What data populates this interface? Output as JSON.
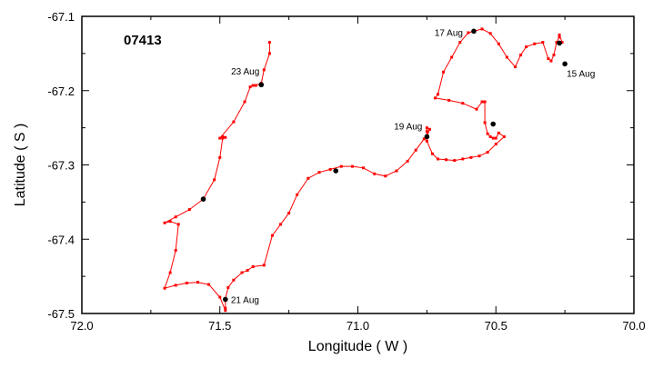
{
  "chart_data": {
    "type": "line",
    "title": "",
    "float_id": "07413",
    "xlabel": "Longitude ( W )",
    "ylabel": "Latitude ( S )",
    "xlim": [
      72.0,
      70.0
    ],
    "ylim": [
      -67.5,
      -67.1
    ],
    "x_ticks": [
      72.0,
      71.5,
      71.0,
      70.5,
      70.0
    ],
    "x_tick_labels": [
      "72.0",
      "71.5",
      "71.0",
      "70.5",
      "70.0"
    ],
    "y_ticks": [
      -67.1,
      -67.2,
      -67.3,
      -67.4,
      -67.5
    ],
    "y_tick_labels": [
      "-67.1",
      "-67.2",
      "-67.3",
      "-67.4",
      "-67.5"
    ],
    "grid": false,
    "legend": "none",
    "colors": {
      "track": "#ff0000",
      "marker": "#000000",
      "frame": "#000000"
    },
    "series": [
      {
        "x": [
          70.26,
          70.27,
          70.27,
          70.28,
          70.29,
          70.3,
          70.31,
          70.33,
          70.36,
          70.39,
          70.41,
          70.43,
          70.46,
          70.49,
          70.52,
          70.55,
          70.58,
          70.6,
          70.63,
          70.66,
          70.69,
          70.71,
          70.72,
          70.67,
          70.62,
          70.57,
          70.55,
          70.54,
          70.54,
          70.53,
          70.52,
          70.51,
          70.5,
          70.49,
          70.47,
          70.5,
          70.53,
          70.56,
          70.59,
          70.62,
          70.65,
          70.68,
          70.71,
          70.73,
          70.75,
          70.75,
          70.75,
          70.74,
          70.75,
          70.76,
          70.79,
          70.82,
          70.86,
          70.9,
          70.94,
          70.98,
          71.02,
          71.06,
          71.1,
          71.14,
          71.18,
          71.22,
          71.25,
          71.28,
          71.31,
          71.34,
          71.38,
          71.4,
          71.42,
          71.45,
          71.47,
          71.48,
          71.48,
          71.48,
          71.5,
          71.54,
          71.58,
          71.62,
          71.66,
          71.7,
          71.68,
          71.66,
          71.65,
          71.68,
          71.7,
          71.66,
          71.61,
          71.56,
          71.52,
          71.5,
          71.49,
          71.48,
          71.49,
          71.5,
          71.45,
          71.41,
          71.39,
          71.38,
          71.37,
          71.35,
          71.34,
          71.32,
          71.32
        ],
        "y": [
          -67.135,
          -67.125,
          -67.128,
          -67.135,
          -67.152,
          -67.16,
          -67.157,
          -67.135,
          -67.137,
          -67.141,
          -67.152,
          -67.168,
          -67.155,
          -67.137,
          -67.123,
          -67.117,
          -67.12,
          -67.122,
          -67.135,
          -67.155,
          -67.175,
          -67.205,
          -67.21,
          -67.213,
          -67.217,
          -67.225,
          -67.215,
          -67.215,
          -67.243,
          -67.258,
          -67.262,
          -67.264,
          -67.264,
          -67.257,
          -67.262,
          -67.272,
          -67.283,
          -67.288,
          -67.29,
          -67.292,
          -67.294,
          -67.293,
          -67.292,
          -67.285,
          -67.268,
          -67.255,
          -67.25,
          -67.252,
          -67.262,
          -67.265,
          -67.28,
          -67.295,
          -67.308,
          -67.315,
          -67.312,
          -67.304,
          -67.302,
          -67.302,
          -67.306,
          -67.31,
          -67.318,
          -67.34,
          -67.365,
          -67.38,
          -67.395,
          -67.435,
          -67.437,
          -67.442,
          -67.445,
          -67.455,
          -67.465,
          -67.48,
          -67.493,
          -67.496,
          -67.478,
          -67.461,
          -67.458,
          -67.459,
          -67.462,
          -67.466,
          -67.445,
          -67.415,
          -67.38,
          -67.376,
          -67.378,
          -67.37,
          -67.36,
          -67.346,
          -67.32,
          -67.29,
          -67.264,
          -67.263,
          -67.262,
          -67.264,
          -67.242,
          -67.215,
          -67.195,
          -67.193,
          -67.193,
          -67.19,
          -67.172,
          -67.15,
          -67.135
        ]
      }
    ],
    "markers": [
      {
        "label": "15 Aug",
        "x": 70.25,
        "y": -67.164
      },
      {
        "label": "",
        "x": 70.27,
        "y": -67.136
      },
      {
        "label": "17 Aug",
        "x": 70.58,
        "y": -67.12
      },
      {
        "label": "",
        "x": 70.51,
        "y": -67.245
      },
      {
        "label": "19 Aug",
        "x": 70.75,
        "y": -67.262
      },
      {
        "label": "",
        "x": 71.08,
        "y": -67.308
      },
      {
        "label": "21 Aug",
        "x": 71.48,
        "y": -67.481
      },
      {
        "label": "",
        "x": 71.56,
        "y": -67.346
      },
      {
        "label": "23 Aug",
        "x": 71.35,
        "y": -67.192
      }
    ]
  }
}
